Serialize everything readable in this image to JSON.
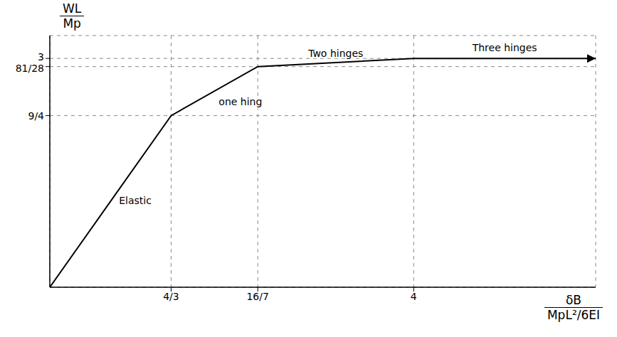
{
  "chart_data": {
    "type": "line",
    "x": [
      0,
      1.3333333333333333,
      2.2857142857142856,
      4,
      6
    ],
    "values": [
      0,
      2.25,
      2.892857142857143,
      3,
      3
    ],
    "xlim": [
      0,
      6
    ],
    "ylim": [
      0,
      3.3
    ],
    "xticks": [
      {
        "value": 1.3333333333333333,
        "label": "4/3"
      },
      {
        "value": 2.2857142857142856,
        "label": "16/7"
      },
      4
    ],
    "yticks": [
      {
        "value": 2.25,
        "label": "9/4"
      },
      {
        "value": 2.892857142857143,
        "label": "81/28"
      },
      3
    ],
    "xlabel": [
      "δB",
      "MpL²/6EI"
    ],
    "ylabel": [
      "WL",
      "Mp"
    ],
    "annotations": [
      "Elastic",
      "one hing",
      "Two hinges",
      "Three hinges"
    ],
    "grid": true,
    "color": "#000000",
    "marker": "arrow"
  }
}
